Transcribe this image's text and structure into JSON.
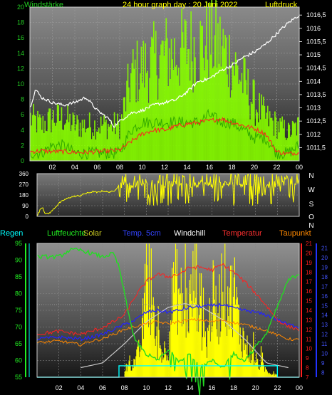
{
  "header": {
    "left": "Windstärke",
    "center": "24 hour graph day : 20 Juni 2022",
    "right": "Luftdruck"
  },
  "legend2": {
    "regen": "Regen",
    "luftfeuchte": "Luftfeuchte",
    "solar": "Solar",
    "temp5": "Temp. 5cm",
    "windchill": "Windchill",
    "temperatur": "Temperatur",
    "taupunkt": "Taupunkt"
  },
  "colors": {
    "wind": "#88ff00",
    "gust_band": "#66dd00",
    "pressure": "#ffffff",
    "temp": "#ff2020",
    "winddir": "#ffff00",
    "humidity": "#22dd22",
    "solar": "#ffff00",
    "temp5": "#2222ff",
    "windchill": "#aaaaaa",
    "taupunkt": "#ff8800",
    "regen": "#00ffff"
  },
  "chart_data": [
    {
      "type": "line",
      "title": "24 hour graph day : 20 Juni 2022",
      "xlabel": "",
      "x_ticks": [
        "02",
        "04",
        "06",
        "08",
        "10",
        "12",
        "14",
        "16",
        "18",
        "20",
        "22",
        "00"
      ],
      "xlim": [
        0,
        24
      ],
      "ylabel_left": "Windstärke",
      "ylim_left": [
        0,
        20
      ],
      "y_ticks_left": [
        "0",
        "2",
        "4",
        "6",
        "8",
        "10",
        "12",
        "14",
        "16",
        "18",
        "20"
      ],
      "ylabel_right": "Luftdruck",
      "ylim_right": [
        1011,
        1016.8
      ],
      "y_ticks_right": [
        "1011,5",
        "1012",
        "1012,5",
        "1013",
        "1013,5",
        "1014",
        "1014,5",
        "1015",
        "1015,5",
        "1016",
        "1016,5"
      ],
      "series": [
        {
          "key": "wind_gust",
          "hours": [
            0,
            1,
            2,
            3,
            4,
            5,
            6,
            7,
            8,
            9,
            10,
            11,
            12,
            13,
            14,
            15,
            16,
            17,
            18,
            19,
            20,
            21,
            22,
            23,
            24
          ],
          "values": [
            6,
            5,
            6,
            6,
            5,
            5,
            5,
            5,
            5,
            12,
            13,
            14,
            15,
            15,
            16,
            16,
            17,
            16,
            14,
            11,
            8,
            6,
            5,
            4,
            5
          ]
        },
        {
          "key": "wind_avg",
          "hours": [
            0,
            1,
            2,
            3,
            4,
            5,
            6,
            7,
            8,
            9,
            10,
            11,
            12,
            13,
            14,
            15,
            16,
            17,
            18,
            19,
            20,
            21,
            22,
            23,
            24
          ],
          "values": [
            1,
            1,
            2,
            2,
            1,
            1,
            1,
            1,
            1,
            4,
            5,
            5,
            5,
            5,
            5,
            5,
            6,
            5,
            5,
            4,
            3,
            3,
            1,
            1,
            2
          ]
        },
        {
          "key": "pressure",
          "hours": [
            0,
            0.5,
            1,
            1.5,
            2,
            3,
            4,
            5,
            6,
            7,
            7.5,
            8,
            9,
            10,
            11,
            12,
            13,
            14,
            15,
            16,
            17,
            18,
            19,
            20,
            21,
            22,
            23,
            24
          ],
          "values": [
            1013,
            1013.7,
            1013.4,
            1013.3,
            1013.2,
            1013.1,
            1013.2,
            1013.4,
            1012.9,
            1012.6,
            1012.3,
            1012.5,
            1012.8,
            1012.9,
            1013.1,
            1013.2,
            1013.3,
            1013.6,
            1014,
            1014.1,
            1014.4,
            1014.6,
            1014.9,
            1015.1,
            1015.4,
            1015.8,
            1016.2,
            1016.5
          ]
        },
        {
          "key": "temperature",
          "hours": [
            0,
            1,
            2,
            3,
            4,
            5,
            6,
            7,
            8,
            9,
            10,
            11,
            12,
            13,
            14,
            15,
            16,
            17,
            18,
            19,
            20,
            21,
            22,
            23,
            24
          ],
          "values": [
            1.2,
            1.3,
            1.2,
            1.2,
            1.1,
            1.1,
            1.2,
            1.3,
            1.4,
            2.5,
            3.5,
            4,
            4,
            4.5,
            4.8,
            5,
            5.2,
            5.5,
            5,
            4.6,
            4.2,
            3.5,
            1.2,
            0.9,
            1.1
          ]
        }
      ]
    },
    {
      "type": "line",
      "title": "",
      "xlim": [
        0,
        24
      ],
      "ylim": [
        0,
        360
      ],
      "y_ticks": [
        "0",
        "90",
        "180",
        "270",
        "360"
      ],
      "right_labels": [
        "N",
        "W",
        "S",
        "O",
        "N"
      ],
      "series": [
        {
          "key": "wind_direction",
          "hours": [
            0,
            0.3,
            0.5,
            0.7,
            1,
            1.3,
            2,
            2.5,
            3,
            3.5,
            4,
            4.3,
            4.8,
            5.2,
            5.5,
            6,
            6.5,
            7,
            7.5,
            8,
            9,
            10,
            11,
            12,
            13,
            14,
            15,
            16,
            17,
            18,
            19,
            20,
            21,
            22,
            23,
            24
          ],
          "values": [
            0,
            60,
            80,
            30,
            20,
            40,
            110,
            140,
            160,
            170,
            175,
            190,
            200,
            210,
            200,
            215,
            205,
            210,
            260,
            280,
            270,
            300,
            280,
            270,
            285,
            270,
            280,
            265,
            270,
            275,
            280,
            260,
            270,
            275,
            290,
            300
          ]
        }
      ]
    },
    {
      "type": "line",
      "title": "",
      "xlim": [
        0,
        24
      ],
      "ylim_left": [
        55,
        95
      ],
      "y_ticks_left": [
        "55",
        "60",
        "65",
        "70",
        "75",
        "80",
        "85",
        "90",
        "95"
      ],
      "ylabel_left": "Luftfeuchte",
      "ylim_right": [
        7,
        21
      ],
      "y_ticks_right_red": [
        "7",
        "8",
        "9",
        "10",
        "11",
        "12",
        "13",
        "14",
        "15",
        "16",
        "17",
        "18",
        "19",
        "20",
        "21"
      ],
      "y_ticks_right_blue": [
        "8",
        "9",
        "10",
        "11",
        "12",
        "13",
        "14",
        "15",
        "16",
        "17",
        "18",
        "19",
        "20",
        "21"
      ],
      "series": [
        {
          "key": "humidity",
          "hours": [
            0,
            2,
            3,
            4,
            5,
            6,
            7,
            7.5,
            8,
            8.5,
            9,
            10,
            11,
            12,
            13,
            14,
            15,
            16,
            17,
            18,
            19,
            20,
            21,
            22,
            23,
            24
          ],
          "values": [
            91,
            91,
            93,
            93,
            92,
            91,
            92,
            88,
            80,
            72,
            66,
            62,
            60,
            63,
            60,
            62,
            58,
            60,
            58,
            62,
            60,
            64,
            68,
            76,
            84,
            86
          ]
        },
        {
          "key": "temperatur",
          "hours": [
            0,
            2,
            4,
            5,
            6,
            7,
            8,
            9,
            10,
            11,
            12,
            13,
            14,
            15,
            16,
            17,
            18,
            19,
            20,
            21,
            22,
            23,
            24
          ],
          "values": [
            11.5,
            11.8,
            11.5,
            11.8,
            12.2,
            12.8,
            13.5,
            15.5,
            17,
            17.8,
            17.5,
            17.8,
            18.5,
            18.5,
            18.2,
            18.8,
            18,
            17,
            15.8,
            14.5,
            13,
            12.3,
            12
          ]
        },
        {
          "key": "temp5",
          "hours": [
            0,
            2,
            4,
            5,
            6,
            7,
            8,
            9,
            10,
            11,
            12,
            13,
            14,
            15,
            16,
            17,
            18,
            19,
            20,
            21,
            22,
            23,
            24
          ],
          "values": [
            11,
            11.2,
            11,
            11.2,
            11.5,
            12,
            12.5,
            13,
            13.8,
            14,
            13.8,
            14,
            14.3,
            14.4,
            14.5,
            14.6,
            14.2,
            14,
            13.8,
            13.5,
            13,
            12.5,
            12.3
          ]
        },
        {
          "key": "taupunkt",
          "hours": [
            0,
            2,
            4,
            5,
            6,
            7,
            8,
            9,
            10,
            11,
            12,
            13,
            14,
            15,
            16,
            17,
            18,
            19,
            20,
            21,
            22,
            23,
            24
          ],
          "values": [
            10.6,
            10.8,
            10.4,
            10.8,
            11,
            11.5,
            12,
            12.3,
            12.6,
            12.8,
            12.6,
            12.8,
            13,
            13,
            12.8,
            13,
            12.7,
            12.5,
            12.2,
            11.9,
            11.4,
            11,
            10.9
          ]
        },
        {
          "key": "windchill",
          "hours": [
            0,
            24
          ],
          "values": [
            14.6,
            14.6
          ]
        },
        {
          "key": "solar_curve",
          "hours": [
            4,
            6,
            8,
            10,
            12,
            13.5,
            15,
            17,
            19,
            21,
            23
          ],
          "values": [
            8,
            8.5,
            10.5,
            12.8,
            14.3,
            14.7,
            14.4,
            13,
            11,
            8.5,
            8
          ]
        },
        {
          "key": "solar_bars",
          "hours": [
            8,
            9,
            9.5,
            10,
            10.5,
            11,
            11.5,
            12,
            12.5,
            13,
            13.5,
            14,
            14.5,
            15,
            15.5,
            16,
            16.5,
            17,
            17.5,
            18,
            18.5,
            19,
            19.5,
            20,
            20.5,
            21,
            21.5
          ],
          "values": [
            0.5,
            1,
            2,
            6,
            3.5,
            2,
            1.5,
            2,
            6,
            5,
            4,
            4.5,
            6.5,
            3.5,
            2,
            5,
            3.5,
            6.5,
            4.5,
            5.5,
            3,
            2,
            1.5,
            1,
            0.7,
            0.4,
            0.2
          ]
        },
        {
          "key": "regen",
          "hours": [
            0,
            7.5,
            7.5,
            22,
            22,
            24
          ],
          "values": [
            0,
            0,
            0.6,
            0.6,
            0,
            0
          ]
        }
      ]
    }
  ]
}
